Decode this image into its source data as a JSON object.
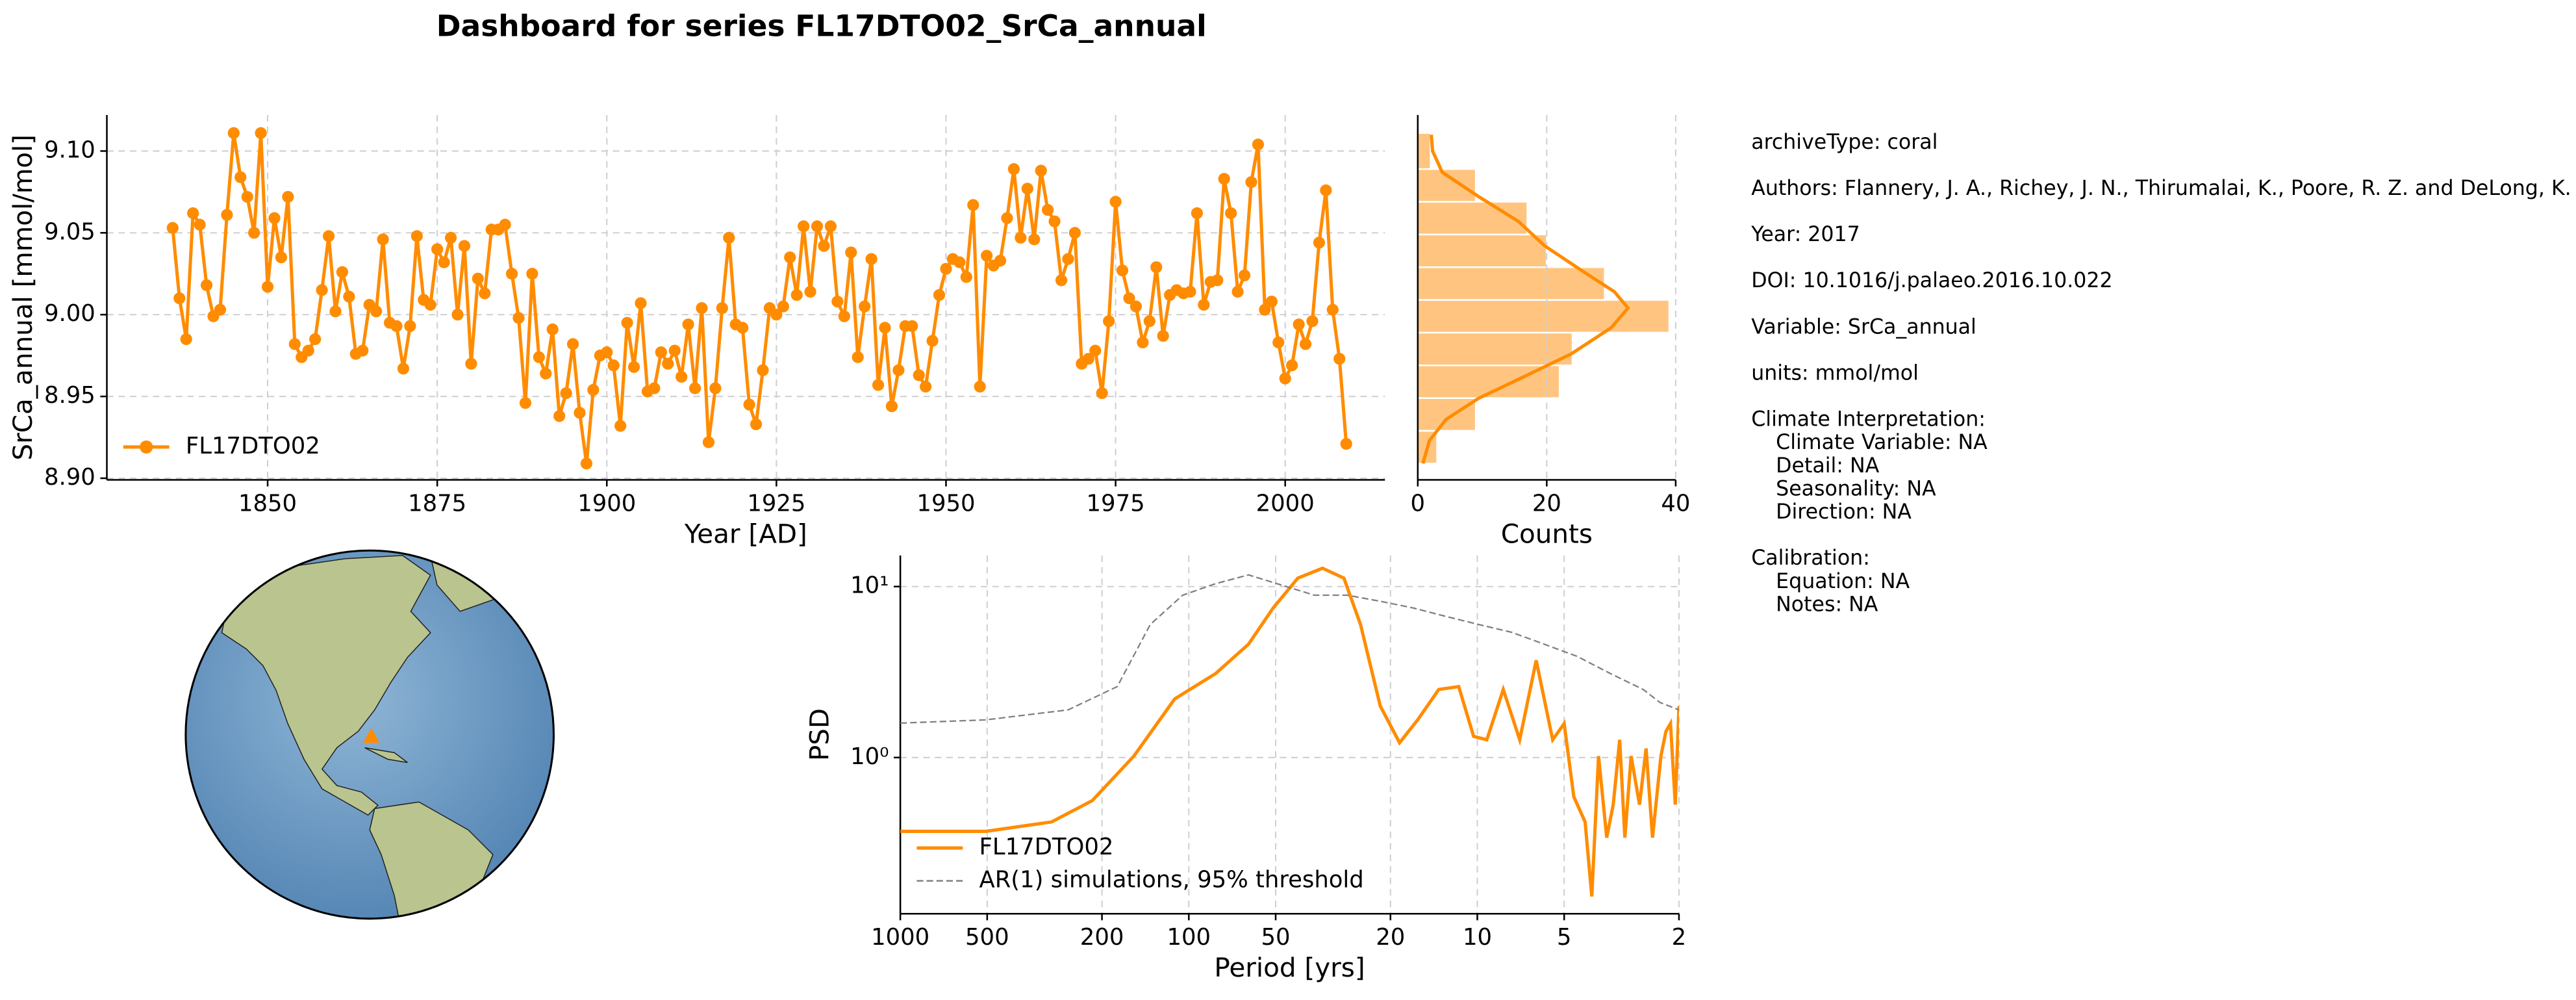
{
  "title": "Dashboard for series FL17DTO02_SrCa_annual",
  "chart_data": [
    {
      "type": "line",
      "xlabel": "Year [AD]",
      "ylabel": "SrCa_annual [mmol/mol]",
      "x": [
        1836,
        1837,
        1838,
        1839,
        1840,
        1841,
        1842,
        1843,
        1844,
        1845,
        1846,
        1847,
        1848,
        1849,
        1850,
        1851,
        1852,
        1853,
        1854,
        1855,
        1856,
        1857,
        1858,
        1859,
        1860,
        1861,
        1862,
        1863,
        1864,
        1865,
        1866,
        1867,
        1868,
        1869,
        1870,
        1871,
        1872,
        1873,
        1874,
        1875,
        1876,
        1877,
        1878,
        1879,
        1880,
        1881,
        1882,
        1883,
        1884,
        1885,
        1886,
        1887,
        1888,
        1889,
        1890,
        1891,
        1892,
        1893,
        1894,
        1895,
        1896,
        1897,
        1898,
        1899,
        1900,
        1901,
        1902,
        1903,
        1904,
        1905,
        1906,
        1907,
        1908,
        1909,
        1910,
        1911,
        1912,
        1913,
        1914,
        1915,
        1916,
        1917,
        1918,
        1919,
        1920,
        1921,
        1922,
        1923,
        1924,
        1925,
        1926,
        1927,
        1928,
        1929,
        1930,
        1931,
        1932,
        1933,
        1934,
        1935,
        1936,
        1937,
        1938,
        1939,
        1940,
        1941,
        1942,
        1943,
        1944,
        1945,
        1946,
        1947,
        1948,
        1949,
        1950,
        1951,
        1952,
        1953,
        1954,
        1955,
        1956,
        1957,
        1958,
        1959,
        1960,
        1961,
        1962,
        1963,
        1964,
        1965,
        1966,
        1967,
        1968,
        1969,
        1970,
        1971,
        1972,
        1973,
        1974,
        1975,
        1976,
        1977,
        1978,
        1979,
        1980,
        1981,
        1982,
        1983,
        1984,
        1985,
        1986,
        1987,
        1988,
        1989,
        1990,
        1991,
        1992,
        1993,
        1994,
        1995,
        1996,
        1997,
        1998,
        1999,
        2000,
        2001,
        2002,
        2003,
        2004,
        2005,
        2006,
        2007,
        2008,
        2009
      ],
      "series": [
        {
          "name": "FL17DTO02",
          "color": "#ff8c00",
          "values": [
            9.053,
            9.01,
            8.985,
            9.062,
            9.055,
            9.018,
            8.999,
            9.003,
            9.061,
            9.111,
            9.084,
            9.072,
            9.05,
            9.111,
            9.017,
            9.059,
            9.035,
            9.072,
            8.982,
            8.974,
            8.978,
            8.985,
            9.015,
            9.048,
            9.002,
            9.026,
            9.011,
            8.976,
            8.978,
            9.006,
            9.002,
            9.046,
            8.995,
            8.993,
            8.967,
            8.993,
            9.048,
            9.009,
            9.006,
            9.04,
            9.032,
            9.047,
            9.0,
            9.042,
            8.97,
            9.022,
            9.013,
            9.052,
            9.052,
            9.055,
            9.025,
            8.998,
            8.946,
            9.025,
            8.974,
            8.964,
            8.991,
            8.938,
            8.952,
            8.982,
            8.94,
            8.909,
            8.954,
            8.975,
            8.977,
            8.969,
            8.932,
            8.995,
            8.968,
            9.007,
            8.953,
            8.955,
            8.977,
            8.97,
            8.978,
            8.962,
            8.994,
            8.955,
            9.004,
            8.922,
            8.955,
            9.004,
            9.047,
            8.994,
            8.992,
            8.945,
            8.933,
            8.966,
            9.004,
            9.0,
            9.005,
            9.035,
            9.012,
            9.054,
            9.014,
            9.054,
            9.042,
            9.054,
            9.008,
            8.999,
            9.038,
            8.974,
            9.005,
            9.034,
            8.957,
            8.992,
            8.944,
            8.966,
            8.993,
            8.993,
            8.963,
            8.956,
            8.984,
            9.012,
            9.028,
            9.034,
            9.032,
            9.023,
            9.067,
            8.956,
            9.036,
            9.03,
            9.033,
            9.059,
            9.089,
            9.047,
            9.077,
            9.046,
            9.088,
            9.064,
            9.057,
            9.021,
            9.034,
            9.05,
            8.97,
            8.973,
            8.978,
            8.952,
            8.996,
            9.069,
            9.027,
            9.01,
            9.005,
            8.983,
            8.996,
            9.029,
            8.987,
            9.012,
            9.015,
            9.013,
            9.014,
            9.062,
            9.006,
            9.02,
            9.021,
            9.083,
            9.062,
            9.014,
            9.024,
            9.081,
            9.104,
            9.003,
            9.008,
            8.983,
            8.961,
            8.969,
            8.994,
            8.982,
            8.996,
            9.044,
            9.076,
            9.003,
            8.973,
            8.921
          ]
        }
      ],
      "xlim": [
        1826.3,
        2014.7
      ],
      "ylim": [
        8.899,
        9.122
      ],
      "xticks": [
        1850,
        1875,
        1900,
        1925,
        1950,
        1975,
        2000
      ],
      "yticks": [
        {
          "value": 8.9,
          "label": "8.90"
        },
        8.95,
        {
          "value": 9.0,
          "label": "9.00"
        },
        9.05,
        {
          "value": 9.1,
          "label": "9.10"
        }
      ],
      "grid": true,
      "legend": "lower left",
      "markers": true
    },
    {
      "type": "histogram",
      "orientation": "horizontal",
      "xlabel": "Counts",
      "bins": [
        8.909,
        8.929,
        8.949,
        8.969,
        8.989,
        9.009,
        9.029,
        9.049,
        9.069,
        9.089,
        9.111
      ],
      "values": [
        3,
        9,
        22,
        24,
        39,
        29,
        20,
        17,
        9,
        2
      ],
      "color": "#ffc580",
      "kde": {
        "color": "#ff8c00",
        "y": [
          9.11,
          9.1,
          9.087,
          9.072,
          9.057,
          9.042,
          9.027,
          9.014,
          9.004,
          8.992,
          8.976,
          8.961,
          8.949,
          8.936,
          8.923,
          8.909
        ],
        "values": [
          2.1,
          2.3,
          3.8,
          9.5,
          15.6,
          19.7,
          25.4,
          30.5,
          32.6,
          30.0,
          23.8,
          15.9,
          9.5,
          4.4,
          1.8,
          0.8
        ]
      },
      "xlim": [
        0,
        40
      ],
      "ylim": [
        8.899,
        9.122
      ],
      "xticks": [
        0,
        20,
        40
      ],
      "grid": true
    },
    {
      "type": "line",
      "xlabel": "Period [yrs]",
      "ylabel": "PSD",
      "xscale": "log",
      "yscale": "log",
      "series": [
        {
          "name": "FL17DTO02",
          "color": "#ff8c00",
          "linestyle": "solid",
          "x": [
            1000,
            506,
            299,
            216,
            155,
            112,
            80.7,
            62.1,
            51,
            41.9,
            34.4,
            29,
            25.4,
            21.7,
            18.6,
            16.1,
            13.6,
            11.6,
            10.3,
            9.27,
            8.13,
            7.13,
            6.25,
            5.48,
            5.0,
            4.63,
            4.23,
            4.01,
            3.8,
            3.56,
            3.38,
            3.21,
            3.08,
            2.93,
            2.74,
            2.6,
            2.47,
            2.31,
            2.22,
            2.14,
            2.06,
            2
          ],
          "values": [
            0.37,
            0.37,
            0.42,
            0.56,
            1.02,
            2.2,
            3.1,
            4.6,
            7.5,
            11.2,
            12.8,
            11.2,
            6.0,
            2.0,
            1.22,
            1.66,
            2.5,
            2.6,
            1.33,
            1.27,
            2.5,
            1.27,
            3.7,
            1.27,
            1.58,
            0.59,
            0.42,
            0.154,
            1.02,
            0.34,
            0.53,
            1.27,
            0.34,
            1.02,
            0.53,
            1.13,
            0.34,
            1.02,
            1.42,
            1.58,
            0.53,
            2.0
          ]
        },
        {
          "name": "AR(1) simulations, 95% threshold",
          "color": "#808080",
          "linestyle": "dashed",
          "x": [
            1000,
            506,
            262,
            177,
            136,
            105,
            80.7,
            62.1,
            47.7,
            36.7,
            28.2,
            21.7,
            16.7,
            12.9,
            9.9,
            7.6,
            5.86,
            4.5,
            3.46,
            2.66,
            2.33,
            2
          ],
          "values": [
            1.59,
            1.66,
            1.9,
            2.6,
            6.0,
            8.9,
            10.4,
            11.7,
            10.2,
            8.9,
            8.9,
            8.2,
            7.5,
            6.7,
            6.0,
            5.4,
            4.6,
            3.9,
            3.1,
            2.5,
            2.1,
            1.9
          ]
        }
      ],
      "xlim": [
        1000,
        2
      ],
      "ylim": [
        0.122,
        15.2
      ],
      "xticks": [
        1000,
        500,
        200,
        100,
        50,
        20,
        10,
        5,
        2
      ],
      "yticks": [
        {
          "value": 1,
          "label": "10⁰"
        },
        {
          "value": 10,
          "label": "10¹"
        }
      ],
      "grid": true,
      "legend": "lower left"
    }
  ],
  "metadata": [
    [
      "archiveType: coral"
    ],
    [
      "Authors: Flannery, J. A., Richey, J. N., Thirumalai, K., Poore, R. Z. and DeLong, K. L."
    ],
    [
      "Year: 2017"
    ],
    [
      "DOI: 10.1016/j.palaeo.2016.10.022"
    ],
    [
      "Variable: SrCa_annual"
    ],
    [
      "units: mmol/mol"
    ],
    [
      "Climate Interpretation:",
      "Climate Variable: NA",
      "Detail: NA",
      "Seasonality: NA",
      "Direction: NA"
    ],
    [
      "Calibration:",
      "Equation: NA",
      "Notes: NA"
    ]
  ]
}
